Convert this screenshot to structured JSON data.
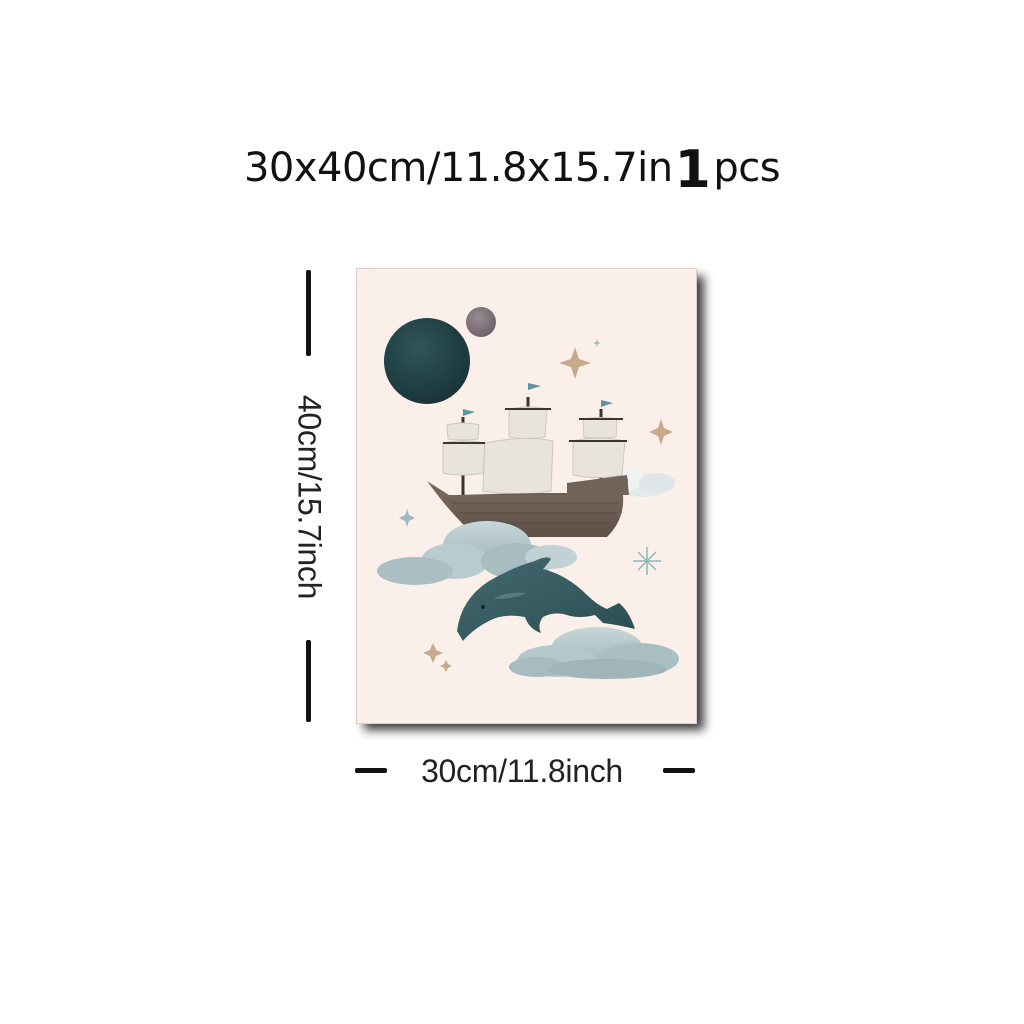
{
  "title": {
    "size_text": "30x40cm/11.8x15.7in",
    "quantity_number": "1",
    "quantity_unit": "pcs"
  },
  "dimensions": {
    "height_label": "40cm/15.7inch",
    "width_label": "30cm/11.8inch"
  },
  "poster": {
    "background_color": "#fbefe9",
    "subject": "ship-dolphin-clouds-illustration"
  }
}
